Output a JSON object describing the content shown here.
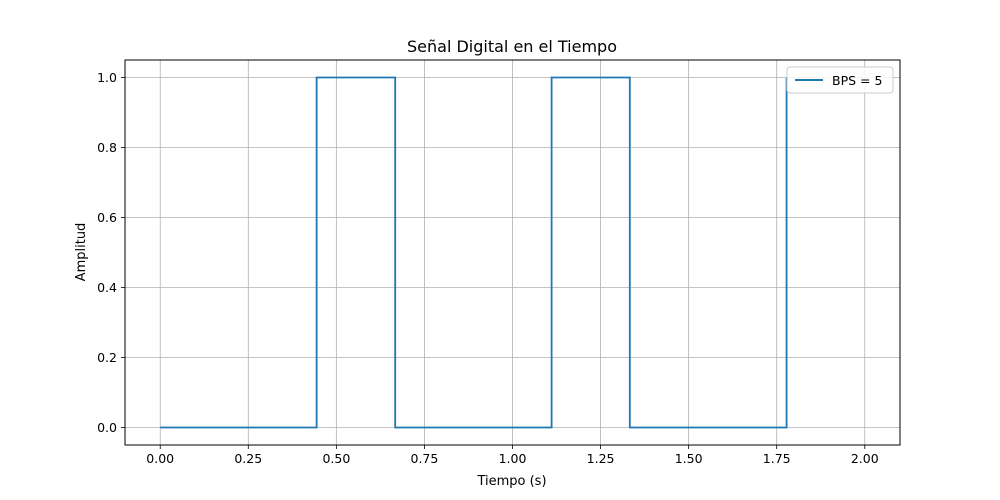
{
  "chart_data": {
    "type": "line",
    "step": "post",
    "title": "Señal Digital en el Tiempo",
    "xlabel": "Tiempo (s)",
    "ylabel": "Amplitud",
    "xlim": [
      -0.1,
      2.1
    ],
    "ylim": [
      -0.05,
      1.05
    ],
    "xticks": [
      0.0,
      0.25,
      0.5,
      0.75,
      1.0,
      1.25,
      1.5,
      1.75,
      2.0
    ],
    "xtick_labels": [
      "0.00",
      "0.25",
      "0.50",
      "0.75",
      "1.00",
      "1.25",
      "1.50",
      "1.75",
      "2.00"
    ],
    "yticks": [
      0.0,
      0.2,
      0.4,
      0.6,
      0.8,
      1.0
    ],
    "ytick_labels": [
      "0.0",
      "0.2",
      "0.4",
      "0.6",
      "0.8",
      "1.0"
    ],
    "grid": true,
    "legend_position": "top-right",
    "series": [
      {
        "name": "BPS = 5",
        "color": "#1f77b4",
        "x": [
          0.0,
          0.444,
          0.667,
          1.111,
          1.333,
          1.778
        ],
        "y": [
          0,
          1,
          0,
          1,
          0,
          1
        ]
      }
    ]
  }
}
